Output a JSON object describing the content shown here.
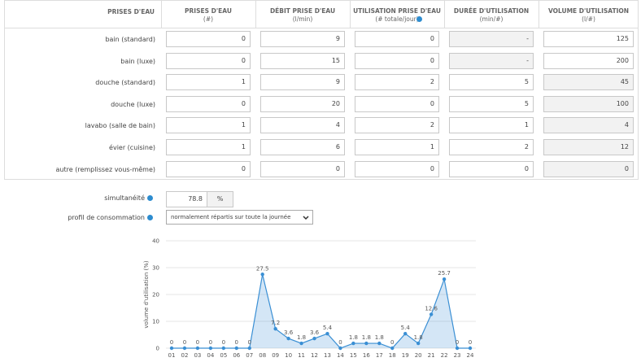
{
  "table": {
    "headers": [
      {
        "title": "PRISES D'EAU"
      },
      {
        "title": "PRISES D'EAU",
        "unit": "(#)"
      },
      {
        "title": "DÉBIT PRISE D'EAU",
        "unit": "(l/min)"
      },
      {
        "title": "UTILISATION PRISE D'EAU",
        "unit": "(# totale/jour)"
      },
      {
        "title": "DURÉE D'UTILISATION",
        "unit": "(min/#)"
      },
      {
        "title": "VOLUME D'UTILISATION",
        "unit": "(l/#)"
      }
    ],
    "rows": [
      {
        "label": "bain (standard)",
        "cells": [
          0,
          9,
          0,
          "-",
          125
        ]
      },
      {
        "label": "bain (luxe)",
        "cells": [
          0,
          15,
          0,
          "-",
          200
        ]
      },
      {
        "label": "douche (standard)",
        "cells": [
          1,
          9,
          2,
          5,
          45
        ]
      },
      {
        "label": "douche (luxe)",
        "cells": [
          0,
          20,
          0,
          5,
          100
        ]
      },
      {
        "label": "lavabo (salle de bain)",
        "cells": [
          1,
          4,
          2,
          1,
          4
        ]
      },
      {
        "label": "évier (cuisine)",
        "cells": [
          1,
          6,
          1,
          2,
          12
        ]
      },
      {
        "label": "autre (remplissez vous-même)",
        "cells": [
          0,
          0,
          0,
          0,
          0
        ]
      }
    ]
  },
  "settings": {
    "simultaneity": {
      "label": "simultanéité",
      "value": 78.8,
      "unit": "%"
    },
    "profile": {
      "label": "profil de consommation",
      "value": "normalement répartis sur toute la journée"
    }
  },
  "chart_data": {
    "type": "area",
    "y_label": "volume d'utilisation (%)",
    "categories": [
      "01",
      "02",
      "03",
      "04",
      "05",
      "06",
      "07",
      "08",
      "09",
      "10",
      "11",
      "12",
      "13",
      "14",
      "15",
      "16",
      "17",
      "18",
      "19",
      "20",
      "21",
      "22",
      "23",
      "24"
    ],
    "values": [
      0,
      0,
      0,
      0,
      0,
      0,
      0,
      27.5,
      7.2,
      3.6,
      1.8,
      3.6,
      5.4,
      0,
      1.8,
      1.8,
      1.8,
      0,
      5.4,
      1.8,
      12.6,
      25.7,
      0,
      0
    ],
    "color": "#3a8fd4",
    "ylim": [
      0,
      40
    ],
    "yticks": [
      0,
      10,
      20,
      30,
      40
    ],
    "grid": true
  }
}
